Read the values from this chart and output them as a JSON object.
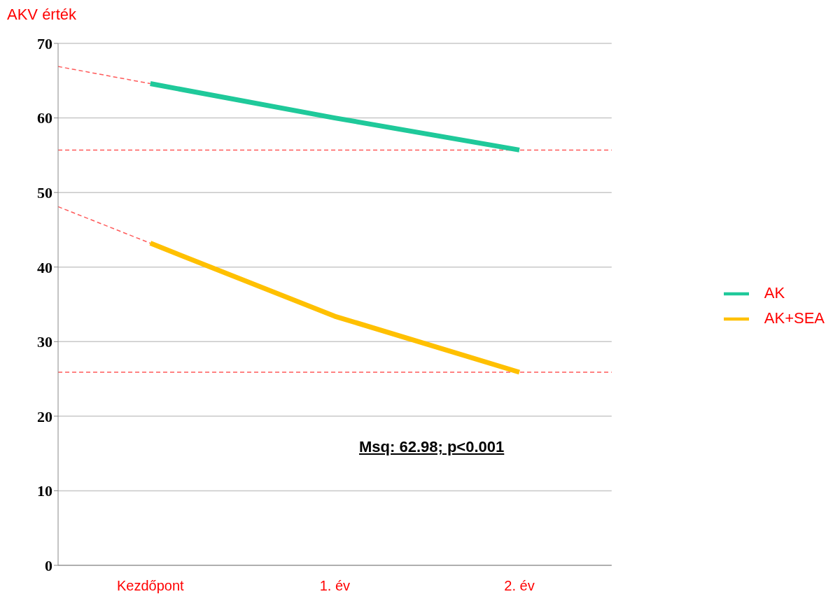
{
  "chart_data": {
    "type": "line",
    "ylabel": "AKV érték",
    "categories": [
      "Kezdőpont",
      "1. év",
      "2. év"
    ],
    "series": [
      {
        "name": "AK",
        "color": "#1fc99a",
        "values": [
          64.6,
          60.0,
          55.7
        ]
      },
      {
        "name": "AK+SEA",
        "color": "#ffc000",
        "values": [
          43.2,
          33.4,
          25.9
        ]
      }
    ],
    "ylim": [
      0,
      70
    ],
    "yticks": [
      0,
      10,
      20,
      30,
      40,
      50,
      60,
      70
    ],
    "grid": "y",
    "legend": "right",
    "marker": "none",
    "line_style": "solid",
    "ref_lines": [
      {
        "axis": "y",
        "value": 55.7,
        "color": "#ff5a5a",
        "line_style": "dashed"
      },
      {
        "axis": "y",
        "value": 25.9,
        "color": "#ff5a5a",
        "line_style": "dashed"
      }
    ],
    "annotations": [
      "Msq: 62.98; p<0.001"
    ]
  }
}
